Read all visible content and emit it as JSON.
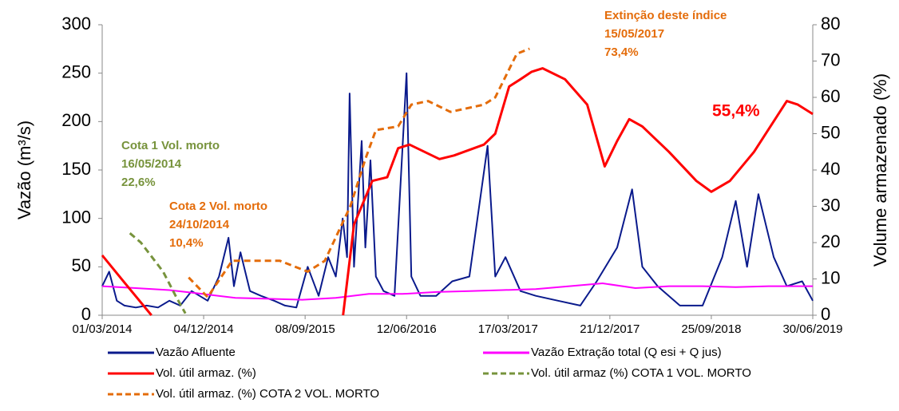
{
  "chart_data": {
    "type": "line",
    "y_label": "Vazão (m³/s)",
    "y2_label": "Volume armazenado (%)",
    "xlim": [
      "2014-03-01",
      "2019-06-30"
    ],
    "xticks": [
      {
        "value": "2014-03-01",
        "label": "01/03/2014"
      },
      {
        "value": "2014-12-04",
        "label": "04/12/2014"
      },
      {
        "value": "2015-09-08",
        "label": "08/09/2015"
      },
      {
        "value": "2016-06-12",
        "label": "12/06/2016"
      },
      {
        "value": "2017-03-17",
        "label": "17/03/2017"
      },
      {
        "value": "2017-12-21",
        "label": "21/12/2017"
      },
      {
        "value": "2018-09-25",
        "label": "25/09/2018"
      },
      {
        "value": "2019-06-30",
        "label": "30/06/2019"
      }
    ],
    "ylim": [
      0,
      300
    ],
    "yticks": [
      0,
      50,
      100,
      150,
      200,
      250,
      300
    ],
    "y2lim": [
      0,
      80
    ],
    "y2ticks": [
      0,
      10,
      20,
      30,
      40,
      50,
      60,
      70,
      80
    ],
    "series": [
      {
        "name": "Vazão Afluente",
        "color": "#0a1a8c",
        "dash": false,
        "axis": "y",
        "x": [
          "2014-03-01",
          "2014-03-20",
          "2014-04-10",
          "2014-05-01",
          "2014-06-01",
          "2014-07-01",
          "2014-08-01",
          "2014-09-01",
          "2014-10-01",
          "2014-11-01",
          "2014-12-15",
          "2015-01-15",
          "2015-02-10",
          "2015-02-25",
          "2015-03-15",
          "2015-04-10",
          "2015-05-10",
          "2015-06-15",
          "2015-07-15",
          "2015-08-15",
          "2015-09-15",
          "2015-10-15",
          "2015-11-10",
          "2015-12-01",
          "2015-12-20",
          "2016-01-01",
          "2016-01-08",
          "2016-01-20",
          "2016-02-10",
          "2016-02-20",
          "2016-03-05",
          "2016-03-20",
          "2016-04-10",
          "2016-05-10",
          "2016-06-12",
          "2016-06-25",
          "2016-07-20",
          "2016-09-01",
          "2016-10-15",
          "2016-12-01",
          "2017-01-20",
          "2017-02-10",
          "2017-03-10",
          "2017-04-20",
          "2017-06-01",
          "2017-08-01",
          "2017-10-01",
          "2017-11-15",
          "2018-01-10",
          "2018-02-20",
          "2018-03-20",
          "2018-05-01",
          "2018-07-01",
          "2018-09-01",
          "2018-10-25",
          "2018-12-01",
          "2019-01-01",
          "2019-02-01",
          "2019-03-15",
          "2019-04-20",
          "2019-06-01",
          "2019-06-30"
        ],
        "values": [
          30,
          45,
          15,
          10,
          8,
          10,
          8,
          15,
          10,
          25,
          15,
          40,
          80,
          30,
          65,
          25,
          20,
          15,
          10,
          8,
          50,
          20,
          60,
          40,
          100,
          60,
          229,
          50,
          180,
          70,
          160,
          40,
          25,
          20,
          250,
          40,
          20,
          20,
          35,
          40,
          175,
          40,
          60,
          25,
          20,
          15,
          10,
          35,
          70,
          130,
          50,
          30,
          10,
          10,
          60,
          118,
          50,
          125,
          60,
          30,
          35,
          15
        ]
      },
      {
        "name": "Vazão Extração total (Q esi + Q jus)",
        "color": "#ff00ff",
        "dash": false,
        "axis": "y",
        "x": [
          "2014-03-01",
          "2014-06-01",
          "2014-09-01",
          "2014-12-01",
          "2015-03-01",
          "2015-06-01",
          "2015-09-01",
          "2015-12-01",
          "2016-03-01",
          "2016-06-01",
          "2016-09-01",
          "2016-12-01",
          "2017-03-01",
          "2017-06-01",
          "2017-09-01",
          "2017-12-01",
          "2018-03-01",
          "2018-06-01",
          "2018-09-01",
          "2018-12-01",
          "2019-03-01",
          "2019-06-30"
        ],
        "values": [
          30,
          28,
          26,
          22,
          18,
          17,
          16,
          18,
          22,
          22,
          24,
          25,
          26,
          27,
          30,
          33,
          28,
          30,
          30,
          29,
          30,
          30
        ]
      },
      {
        "name": "Vol. útil armaz. (%)",
        "color": "#ff0000",
        "dash": false,
        "axis": "y2",
        "x": [
          "2014-03-01",
          "2014-05-01",
          "2014-07-14",
          "2015-01-01",
          "2015-12-21",
          "2016-01-20",
          "2016-03-10",
          "2016-04-20",
          "2016-05-20",
          "2016-06-20",
          "2016-09-10",
          "2016-10-20",
          "2017-01-10",
          "2017-02-10",
          "2017-03-20",
          "2017-04-20",
          "2017-05-20",
          "2017-06-20",
          "2017-08-20",
          "2017-10-20",
          "2017-12-07",
          "2018-01-10",
          "2018-02-12",
          "2018-03-20",
          "2018-06-01",
          "2018-08-15",
          "2018-09-25",
          "2018-11-15",
          "2019-01-20",
          "2019-04-20",
          "2019-05-20",
          "2019-06-30"
        ],
        "values": [
          16.5,
          9,
          0,
          null,
          0,
          25,
          37,
          38,
          46,
          47,
          43,
          44,
          47,
          50,
          63,
          65,
          67,
          68,
          65,
          58,
          41,
          48,
          54,
          52,
          45,
          37,
          34,
          37,
          45,
          59,
          58,
          55.4
        ]
      },
      {
        "name": "Vol. útil armaz (%) COTA 1 VOL. MORTO",
        "color": "#77933c",
        "dash": true,
        "axis": "y2",
        "x": [
          "2014-05-16",
          "2014-06-15",
          "2014-08-15",
          "2014-09-20",
          "2014-10-15"
        ],
        "values": [
          22.6,
          20,
          12,
          5,
          0.5
        ]
      },
      {
        "name": "Vol. útil armaz. (%) COTA 2 VOL. MORTO",
        "color": "#e46c0a",
        "dash": true,
        "axis": "y2",
        "x": [
          "2014-10-24",
          "2014-12-15",
          "2015-02-20",
          "2015-07-01",
          "2015-09-15",
          "2015-11-01",
          "2016-01-10",
          "2016-02-20",
          "2016-03-20",
          "2016-05-20",
          "2016-06-25",
          "2016-08-10",
          "2016-10-10",
          "2017-01-10",
          "2017-02-10",
          "2017-04-10",
          "2017-05-15"
        ],
        "values": [
          10.4,
          5,
          15,
          15,
          12,
          15,
          30,
          43,
          51,
          52,
          58,
          59,
          56,
          58,
          60,
          72,
          73.4
        ]
      }
    ],
    "annotations": [
      {
        "lines": [
          "Extinção deste índice",
          "15/05/2017",
          "73,4%"
        ],
        "color": "#e46c0a"
      },
      {
        "lines": [
          "55,4%"
        ],
        "color": "#ff0000"
      },
      {
        "lines": [
          "Cota 1 Vol. morto",
          "16/05/2014",
          "22,6%"
        ],
        "color": "#77933c"
      },
      {
        "lines": [
          "Cota 2 Vol. morto",
          "24/10/2014",
          "10,4%"
        ],
        "color": "#e46c0a"
      }
    ]
  }
}
